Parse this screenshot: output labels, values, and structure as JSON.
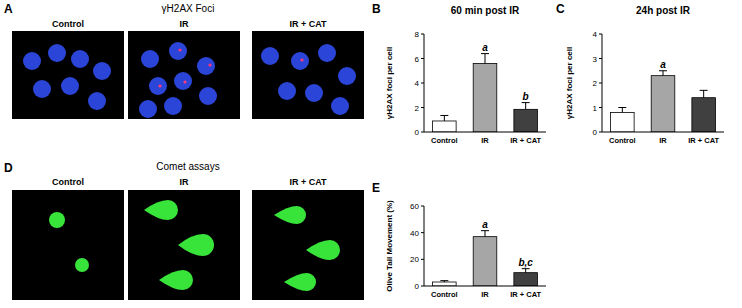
{
  "image_panels": [
    {
      "letter": "A",
      "title": "γH2AX Foci",
      "labels": [
        "Control",
        "IR",
        "IR + CAT"
      ]
    },
    {
      "letter": "D",
      "title": "Comet assays",
      "labels": [
        "Control",
        "IR",
        "IR + CAT"
      ]
    }
  ],
  "chart_data": [
    {
      "letter": "B",
      "type": "bar",
      "title": "60 min post IR",
      "y_label": "γH2AX foci per cell",
      "categories": [
        "Control",
        "IR",
        "IR + CAT"
      ],
      "values": [
        0.9,
        5.6,
        1.85
      ],
      "errors": [
        0.45,
        0.8,
        0.55
      ],
      "colors": [
        "#ffffff",
        "#a6a6a6",
        "#404040"
      ],
      "ylim": [
        0,
        8
      ],
      "yticks": [
        0,
        2,
        4,
        6,
        8
      ],
      "annotations": [
        {
          "category": "IR",
          "text": "a"
        },
        {
          "category": "IR + CAT",
          "text": "b"
        }
      ]
    },
    {
      "letter": "C",
      "type": "bar",
      "title": "24h post IR",
      "y_label": "γH2AX foci per cell",
      "categories": [
        "Control",
        "IR",
        "IR + CAT"
      ],
      "values": [
        0.8,
        2.3,
        1.4
      ],
      "errors": [
        0.2,
        0.2,
        0.3
      ],
      "colors": [
        "#ffffff",
        "#a6a6a6",
        "#404040"
      ],
      "ylim": [
        0,
        4
      ],
      "yticks": [
        0,
        1,
        2,
        3,
        4
      ],
      "annotations": [
        {
          "category": "IR",
          "text": "a"
        }
      ]
    },
    {
      "letter": "E",
      "type": "bar",
      "y_label": "Olive Tail Movement (%)",
      "categories": [
        "Control",
        "IR",
        "IR + CAT"
      ],
      "values": [
        3,
        37,
        10
      ],
      "errors": [
        1,
        4.5,
        3
      ],
      "colors": [
        "#ffffff",
        "#a6a6a6",
        "#404040"
      ],
      "ylim": [
        0,
        60
      ],
      "yticks": [
        0,
        20,
        40,
        60
      ],
      "annotations": [
        {
          "category": "IR",
          "text": "a"
        },
        {
          "category": "IR + CAT",
          "text": "b,c"
        }
      ]
    }
  ]
}
